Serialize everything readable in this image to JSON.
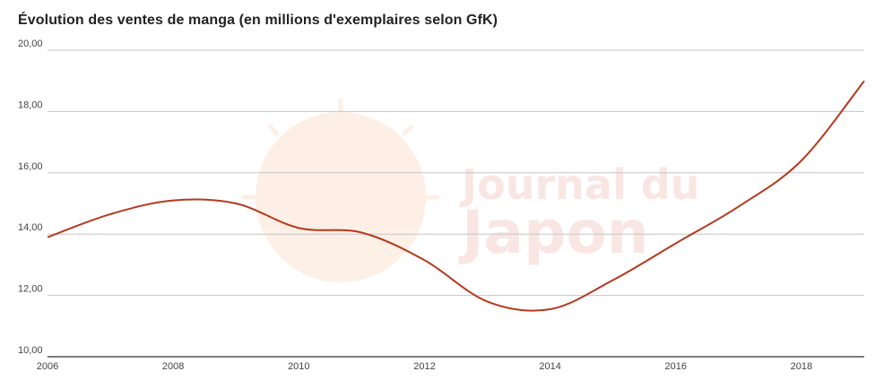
{
  "chart_data": {
    "type": "line",
    "title": "Évolution des ventes de manga (en millions d'exemplaires selon GfK)",
    "xlabel": "",
    "ylabel": "",
    "x": [
      2006,
      2007,
      2008,
      2009,
      2010,
      2011,
      2012,
      2013,
      2014,
      2015,
      2016,
      2017,
      2018,
      2019
    ],
    "series": [
      {
        "values": [
          13.9,
          14.65,
          15.1,
          15.0,
          14.2,
          14.05,
          13.15,
          11.8,
          11.55,
          12.5,
          13.7,
          14.9,
          16.4,
          19.0
        ]
      }
    ],
    "xlim": [
      2006,
      2019
    ],
    "ylim": [
      10,
      20
    ],
    "x_ticks": [
      "2006",
      "2008",
      "2010",
      "2012",
      "2014",
      "2016",
      "2018"
    ],
    "y_ticks": [
      "10,00",
      "12,00",
      "14,00",
      "16,00",
      "18,00",
      "20,00"
    ],
    "grid": true,
    "line_color": "#b5391d"
  },
  "watermark": {
    "line1": "Journal du",
    "line2": "Japon"
  }
}
